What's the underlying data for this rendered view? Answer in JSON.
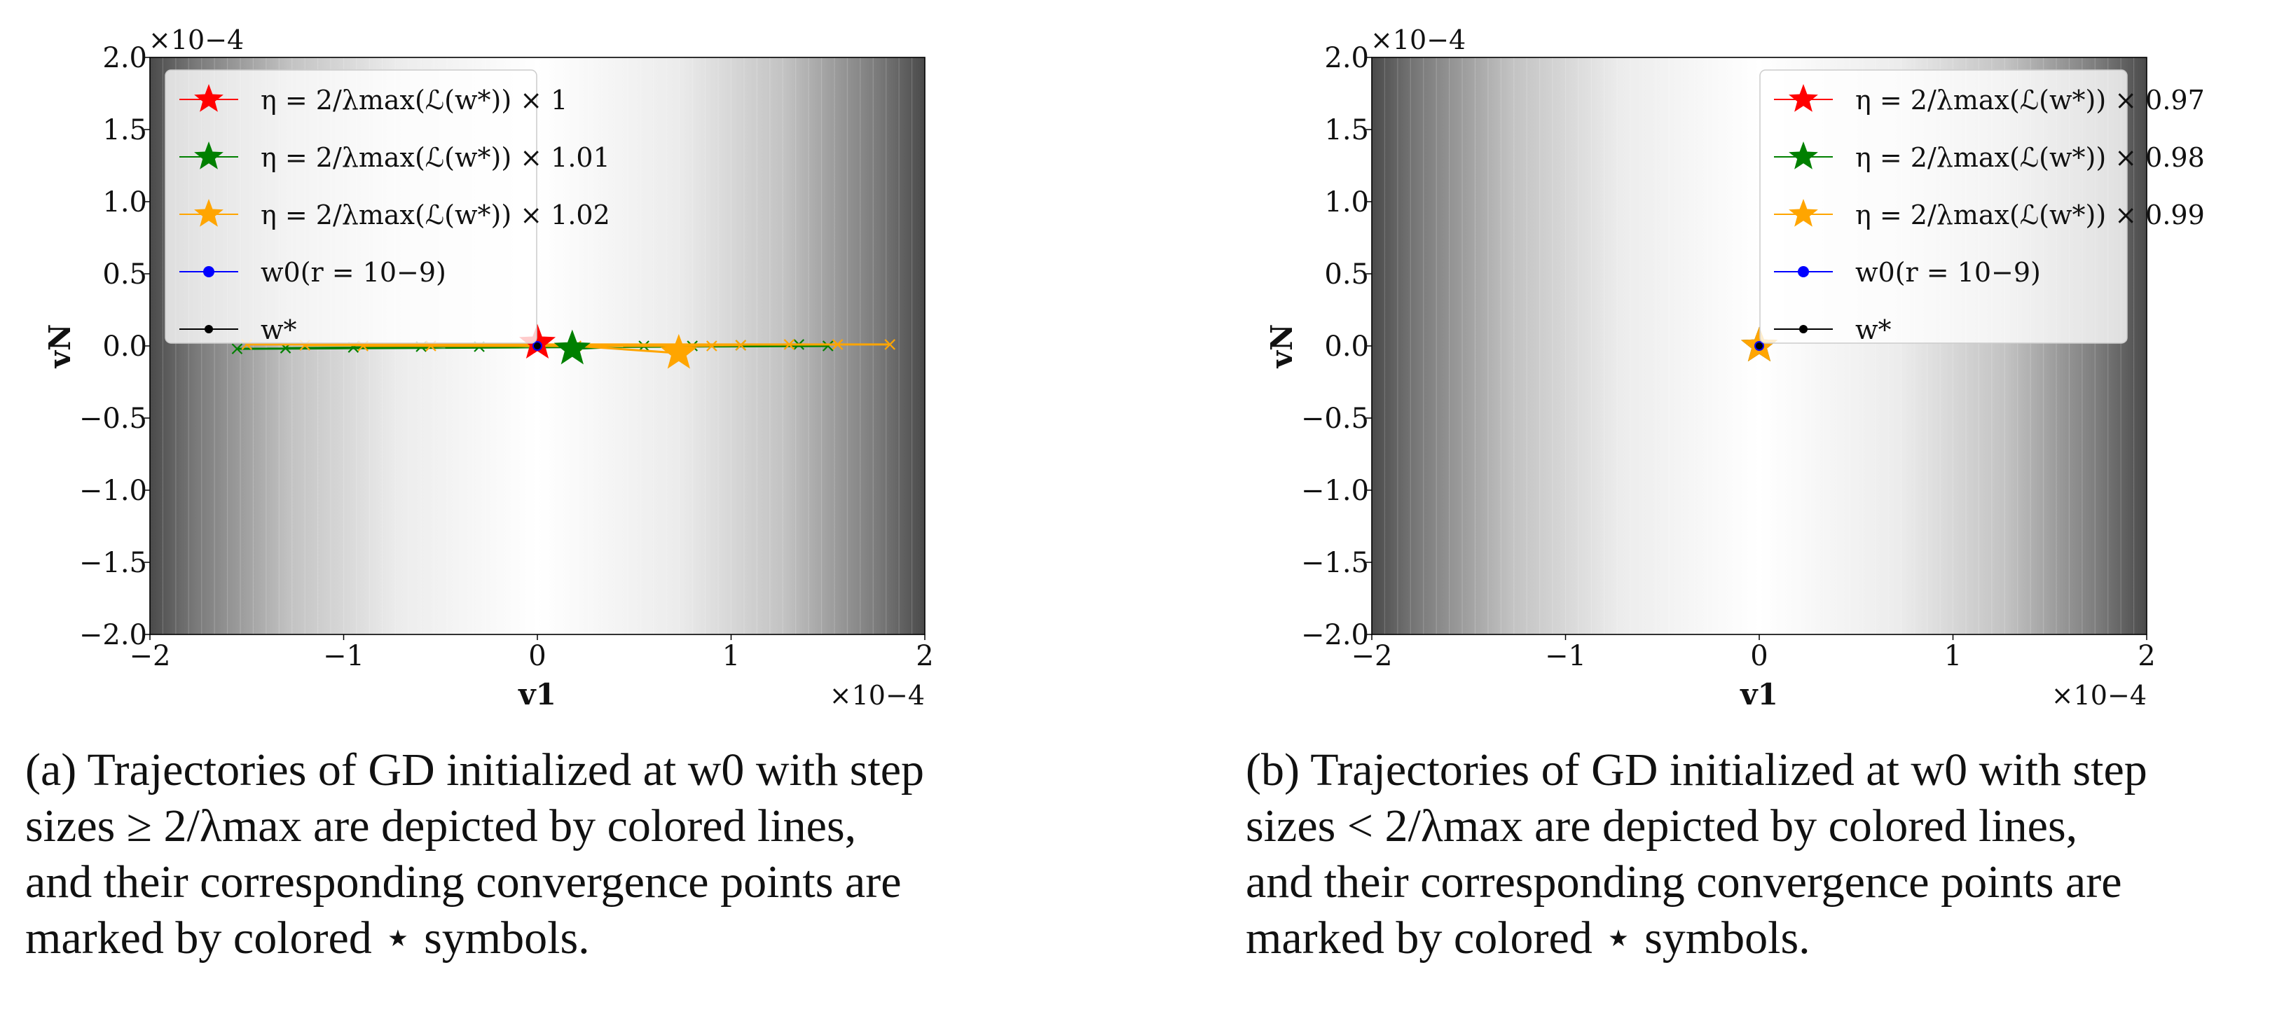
{
  "chart_data": [
    {
      "panel": "a",
      "type": "line",
      "xlabel": "v1",
      "ylabel": "vN",
      "x_unit": "×10−4",
      "y_unit": "×10−4",
      "xlim": [
        -2.0,
        2.0
      ],
      "ylim": [
        -2.0,
        2.0
      ],
      "x_ticks": [
        "−2",
        "−1",
        "0",
        "1",
        "2"
      ],
      "y_ticks": [
        "2.0",
        "1.5",
        "1.0",
        "0.5",
        "0.0",
        "−0.5",
        "−1.0",
        "−1.5",
        "−2.0"
      ],
      "legend_position": "top-left",
      "legend": [
        {
          "label": "η = 2/λmax(ℒ(w*)) × 1",
          "marker": "star",
          "color": "#ff0000"
        },
        {
          "label": "η = 2/λmax(ℒ(w*)) × 1.01",
          "marker": "star",
          "color": "#008000"
        },
        {
          "label": "η = 2/λmax(ℒ(w*)) × 1.02",
          "marker": "star",
          "color": "#ffa500"
        },
        {
          "label": "w0(r = 10−9)",
          "marker": "dot",
          "color": "#0000ff"
        },
        {
          "label": "w*",
          "marker": "dot",
          "color": "#000000"
        }
      ],
      "trajectories": [
        {
          "color": "#008000",
          "x": [
            -1.55,
            1.5,
            -1.3,
            1.35,
            -0.95,
            1.05,
            -0.6,
            0.8,
            -0.3,
            0.55,
            0.18
          ],
          "y": [
            -0.02,
            0.0,
            -0.015,
            0.01,
            -0.01,
            0.005,
            -0.005,
            0.0,
            -0.005,
            0.0,
            -0.02
          ]
        },
        {
          "color": "#ffa500",
          "x": [
            1.82,
            -1.5,
            1.55,
            -1.2,
            1.3,
            -0.9,
            1.05,
            -0.55,
            0.9,
            0.2,
            0.73
          ],
          "y": [
            0.01,
            0.01,
            0.01,
            0.005,
            0.01,
            0.0,
            0.005,
            0.0,
            0.0,
            0.0,
            -0.05
          ]
        }
      ],
      "stars": [
        {
          "color": "#ff0000",
          "x": 0.0,
          "y": 0.02
        },
        {
          "color": "#008000",
          "x": 0.18,
          "y": -0.02
        },
        {
          "color": "#ffa500",
          "x": 0.73,
          "y": -0.05
        }
      ],
      "points": [
        {
          "name": "w0",
          "color": "#0000ff",
          "x": 0.0,
          "y": 0.0
        },
        {
          "name": "w*",
          "color": "#000000",
          "x": 0.0,
          "y": 0.0
        }
      ]
    },
    {
      "panel": "b",
      "type": "line",
      "xlabel": "v1",
      "ylabel": "vN",
      "x_unit": "×10−4",
      "y_unit": "×10−4",
      "xlim": [
        -2.0,
        2.0
      ],
      "ylim": [
        -2.0,
        2.0
      ],
      "x_ticks": [
        "−2",
        "−1",
        "0",
        "1",
        "2"
      ],
      "y_ticks": [
        "2.0",
        "1.5",
        "1.0",
        "0.5",
        "0.0",
        "−0.5",
        "−1.0",
        "−1.5",
        "−2.0"
      ],
      "legend_position": "top-right",
      "legend": [
        {
          "label": "η = 2/λmax(ℒ(w*)) × 0.97",
          "marker": "star",
          "color": "#ff0000"
        },
        {
          "label": "η = 2/λmax(ℒ(w*)) × 0.98",
          "marker": "star",
          "color": "#008000"
        },
        {
          "label": "η = 2/λmax(ℒ(w*)) × 0.99",
          "marker": "star",
          "color": "#ffa500"
        },
        {
          "label": "w0(r = 10−9)",
          "marker": "dot",
          "color": "#0000ff"
        },
        {
          "label": "w*",
          "marker": "dot",
          "color": "#000000"
        }
      ],
      "trajectories": [],
      "stars": [
        {
          "color": "#ff0000",
          "x": 0.0,
          "y": 0.0
        },
        {
          "color": "#008000",
          "x": 0.0,
          "y": 0.0
        },
        {
          "color": "#ffa500",
          "x": 0.0,
          "y": 0.0
        }
      ],
      "points": [
        {
          "name": "w0",
          "color": "#0000ff",
          "x": 0.0,
          "y": 0.0
        },
        {
          "name": "w*",
          "color": "#000000",
          "x": 0.0,
          "y": 0.0
        }
      ]
    }
  ],
  "captions": {
    "a": [
      "(a) Trajectories of GD initialized at w0 with step",
      "sizes ≥ 2/λmax are depicted by colored lines,",
      "and their corresponding convergence points are",
      "marked by colored ⋆ symbols."
    ],
    "b": [
      "(b) Trajectories of GD initialized at w0 with step",
      "sizes < 2/λmax are depicted by colored lines,",
      "and their corresponding convergence points are",
      "marked by colored ⋆ symbols."
    ]
  }
}
